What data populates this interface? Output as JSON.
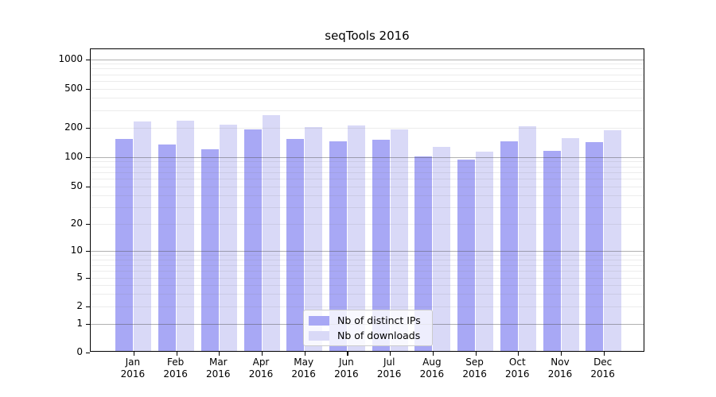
{
  "title": "seqTools 2016",
  "colors": {
    "distinct_ips_bar": "#a8a8f5",
    "downloads_bar": "#d9d9f7",
    "axis": "#000000",
    "major_grid": "#b0b0b0",
    "minor_grid": "#ececec"
  },
  "legend": {
    "items": [
      {
        "label": "Nb of distinct IPs",
        "color_key": "distinct_ips_bar"
      },
      {
        "label": "Nb of downloads",
        "color_key": "downloads_bar"
      }
    ]
  },
  "chart_data": {
    "type": "bar",
    "title": "seqTools 2016",
    "categories": [
      "Jan 2016",
      "Feb 2016",
      "Mar 2016",
      "Apr 2016",
      "May 2016",
      "Jun 2016",
      "Jul 2016",
      "Aug 2016",
      "Sep 2016",
      "Oct 2016",
      "Nov 2016",
      "Dec 2016"
    ],
    "series": [
      {
        "name": "Nb of distinct IPs",
        "values": [
          148,
          128,
          115,
          184,
          147,
          140,
          143,
          97,
          91,
          139,
          110,
          136
        ]
      },
      {
        "name": "Nb of downloads",
        "values": [
          222,
          225,
          205,
          257,
          193,
          202,
          184,
          121,
          108,
          198,
          151,
          181
        ]
      }
    ],
    "xlabel": "",
    "ylabel": "",
    "y_scale": "symlog",
    "y_ticks": [
      0,
      1,
      2,
      5,
      10,
      20,
      50,
      100,
      200,
      500,
      1000
    ],
    "ylim": [
      0,
      1300
    ],
    "grid": true,
    "legend_position": "bottom-center-inside"
  }
}
